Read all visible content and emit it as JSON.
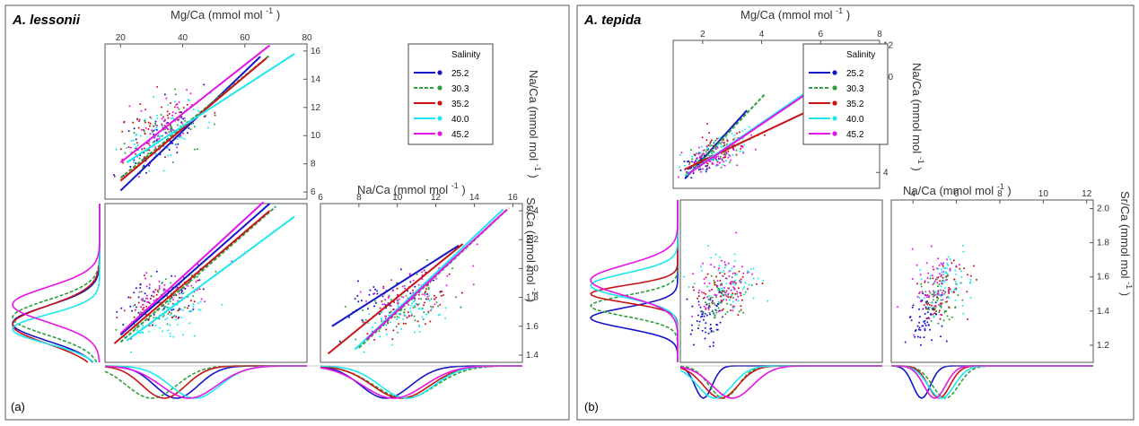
{
  "series_colors": {
    "25.2": "#1414c8",
    "30.3": "#2e9e3e",
    "35.2": "#c81414",
    "40.0": "#1ee6f0",
    "45.2": "#e614e6"
  },
  "chart_data": [
    {
      "panel_label": "(a)",
      "title": "A. lessonii",
      "type": "scatter",
      "axis_labels": {
        "mg": {
          "text": "Mg/Ca (mmol mol",
          "sup": "-1",
          "close": ")"
        },
        "na_top": {
          "text": "Na/Ca (mmol mol",
          "sup": "-1",
          "close": ")"
        },
        "na_right": {
          "text": "Na/Ca (mmol mol",
          "sup": "-1",
          "close": ")"
        },
        "sr": {
          "text": "Sr/Ca (mmol mol",
          "sup": "-1",
          "close": ")"
        }
      },
      "mg_ticks": [
        "20",
        "40",
        "60",
        "80"
      ],
      "mg_range": [
        15,
        80
      ],
      "na_ticks": [
        "6",
        "8",
        "10",
        "12",
        "14",
        "16"
      ],
      "na_range": [
        5.5,
        16.5
      ],
      "na_x_ticks": [
        "6",
        "8",
        "10",
        "12",
        "14",
        "16"
      ],
      "na_x_range": [
        6,
        16.5
      ],
      "sr_ticks": [
        "1.4",
        "1.6",
        "1.8",
        "2.0",
        "2.2",
        "2.4"
      ],
      "sr_range": [
        1.35,
        2.45
      ],
      "legend": {
        "title": "Salinity",
        "entries": [
          "25.2",
          "30.3",
          "35.2",
          "40.0",
          "45.2"
        ]
      },
      "clusters": {
        "mg": {
          "25.2": [
            33,
            6
          ],
          "30.3": [
            33,
            6
          ],
          "35.2": [
            32,
            6
          ],
          "40.0": [
            36,
            7
          ],
          "45.2": [
            34,
            6
          ]
        },
        "na": {
          "25.2": [
            9.8,
            1.3
          ],
          "30.3": [
            10.2,
            1.3
          ],
          "35.2": [
            10.5,
            1.2
          ],
          "40.0": [
            10.3,
            1.3
          ],
          "45.2": [
            10.6,
            1.2
          ]
        },
        "sr": {
          "25.2": [
            1.78,
            0.1
          ],
          "30.3": [
            1.75,
            0.1
          ],
          "35.2": [
            1.74,
            0.1
          ],
          "40.0": [
            1.68,
            0.08
          ],
          "45.2": [
            1.83,
            0.1
          ]
        }
      },
      "regressions": {
        "mg_na": {
          "25.2": [
            [
              20,
              6.1
            ],
            [
              65,
              15.6
            ]
          ],
          "30.3": [
            [
              20,
              7.0
            ],
            [
              68,
              15.7
            ]
          ],
          "35.2": [
            [
              20,
              6.8
            ],
            [
              67,
              15.5
            ]
          ],
          "40.0": [
            [
              22,
              8.1
            ],
            [
              76,
              15.8
            ]
          ],
          "45.2": [
            [
              20,
              8.1
            ],
            [
              68,
              16.4
            ]
          ]
        },
        "mg_sr": {
          "25.2": [
            [
              20,
              1.54
            ],
            [
              68,
              2.45
            ]
          ],
          "30.3": [
            [
              20,
              1.49
            ],
            [
              70,
              2.43
            ]
          ],
          "35.2": [
            [
              18,
              1.48
            ],
            [
              68,
              2.4
            ]
          ],
          "40.0": [
            [
              22,
              1.5
            ],
            [
              76,
              2.36
            ]
          ],
          "45.2": [
            [
              20,
              1.55
            ],
            [
              66,
              2.46
            ]
          ]
        },
        "na_sr": {
          "25.2": [
            [
              6.6,
              1.6
            ],
            [
              13.2,
              2.16
            ]
          ],
          "30.3": [
            [
              8,
              1.45
            ],
            [
              15.8,
              2.42
            ]
          ],
          "35.2": [
            [
              6.4,
              1.41
            ],
            [
              13.4,
              2.17
            ]
          ],
          "40.0": [
            [
              7.8,
              1.44
            ],
            [
              15.5,
              2.41
            ]
          ],
          "45.2": [
            [
              8.4,
              1.51
            ],
            [
              15.7,
              2.41
            ]
          ]
        }
      },
      "density_sr": {
        "25.2": [
          1.62,
          0.12
        ],
        "30.3": [
          1.66,
          0.12
        ],
        "35.2": [
          1.61,
          0.13
        ],
        "40.0": [
          1.58,
          0.1
        ],
        "45.2": [
          1.75,
          0.12
        ]
      },
      "density_mg": {
        "25.2": [
          38,
          7
        ],
        "30.3": [
          30,
          8
        ],
        "35.2": [
          34,
          7
        ],
        "40.0": [
          44,
          8
        ],
        "45.2": [
          42,
          9
        ]
      },
      "density_na": {
        "25.2": [
          9.4,
          1.3
        ],
        "30.3": [
          10.4,
          1.6
        ],
        "35.2": [
          10.2,
          1.5
        ],
        "40.0": [
          10.5,
          1.4
        ],
        "45.2": [
          9.8,
          1.6
        ]
      }
    },
    {
      "panel_label": "(b)",
      "title": "A. tepida",
      "type": "scatter",
      "axis_labels": {
        "mg": {
          "text": "Mg/Ca (mmol mol",
          "sup": "-1",
          "close": ")"
        },
        "na_top": {
          "text": "Na/Ca (mmol mol",
          "sup": "-1",
          "close": ")"
        },
        "na_right": {
          "text": "Na/Ca (mmol mol",
          "sup": "-1",
          "close": ")"
        },
        "sr": {
          "text": "Sr/Ca (mmol mol",
          "sup": "-1",
          "close": ")"
        }
      },
      "mg_ticks": [
        "2",
        "4",
        "6",
        "8"
      ],
      "mg_range": [
        1,
        8
      ],
      "na_ticks": [
        "4",
        "6",
        "8",
        "10",
        "12"
      ],
      "na_range": [
        3,
        12.3
      ],
      "na_x_ticks": [
        "4",
        "6",
        "8",
        "10",
        "12"
      ],
      "na_x_range": [
        3,
        12.3
      ],
      "sr_ticks": [
        "1.2",
        "1.4",
        "1.6",
        "1.8",
        "2.0"
      ],
      "sr_range": [
        1.1,
        2.05
      ],
      "legend": {
        "title": "Salinity",
        "entries": [
          "25.2",
          "30.3",
          "35.2",
          "40.0",
          "45.2"
        ]
      },
      "clusters": {
        "mg": {
          "25.2": [
            1.9,
            0.3
          ],
          "30.3": [
            2.4,
            0.4
          ],
          "35.2": [
            2.5,
            0.5
          ],
          "40.0": [
            2.6,
            0.6
          ],
          "45.2": [
            2.5,
            0.5
          ]
        },
        "na": {
          "25.2": [
            4.6,
            0.4
          ],
          "30.3": [
            5.2,
            0.5
          ],
          "35.2": [
            5.4,
            0.6
          ],
          "40.0": [
            5.4,
            0.6
          ],
          "45.2": [
            5.0,
            0.5
          ]
        },
        "sr": {
          "25.2": [
            1.35,
            0.07
          ],
          "30.3": [
            1.46,
            0.07
          ],
          "35.2": [
            1.52,
            0.08
          ],
          "40.0": [
            1.57,
            0.09
          ],
          "45.2": [
            1.55,
            0.1
          ]
        }
      },
      "regressions": {
        "mg_na": {
          "25.2": [
            [
              1.4,
              3.6
            ],
            [
              3.5,
              7.9
            ]
          ],
          "30.3": [
            [
              1.5,
              3.8
            ],
            [
              4.1,
              8.9
            ]
          ],
          "35.2": [
            [
              1.4,
              4.2
            ],
            [
              7.8,
              9.8
            ]
          ],
          "40.0": [
            [
              1.4,
              3.8
            ],
            [
              6.9,
              10.8
            ]
          ],
          "45.2": [
            [
              1.5,
              3.9
            ],
            [
              6.2,
              9.8
            ]
          ]
        }
      },
      "density_sr": {
        "25.2": [
          1.36,
          0.06
        ],
        "30.3": [
          1.43,
          0.06
        ],
        "35.2": [
          1.5,
          0.05
        ],
        "40.0": [
          1.55,
          0.07
        ],
        "45.2": [
          1.58,
          0.09
        ]
      },
      "density_mg": {
        "25.2": [
          1.8,
          0.3
        ],
        "30.3": [
          2.5,
          0.5
        ],
        "35.2": [
          2.4,
          0.6
        ],
        "40.0": [
          2.2,
          0.6
        ],
        "45.2": [
          2.8,
          0.7
        ]
      },
      "density_na": {
        "25.2": [
          4.4,
          0.4
        ],
        "30.3": [
          5.5,
          0.6
        ],
        "35.2": [
          5.2,
          0.5
        ],
        "40.0": [
          5.3,
          0.6
        ],
        "45.2": [
          5.0,
          0.5
        ]
      }
    }
  ]
}
